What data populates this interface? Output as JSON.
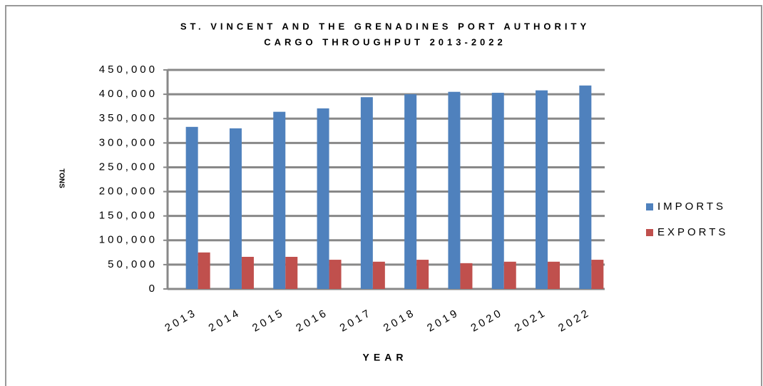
{
  "chart_data": {
    "type": "bar",
    "title": [
      "ST. VINCENT AND THE GRENADINES PORT AUTHORITY",
      "CARGO THROUGHPUT 2013-2022"
    ],
    "x_label": "YEAR",
    "y_label": "TONS",
    "categories": [
      "2013",
      "2014",
      "2015",
      "2016",
      "2017",
      "2018",
      "2019",
      "2020",
      "2021",
      "2022"
    ],
    "series": [
      {
        "name": "IMPORTS",
        "color": "#4f81bd",
        "values": [
          333000,
          330000,
          364000,
          371000,
          394000,
          400000,
          405000,
          403000,
          408000,
          418000
        ]
      },
      {
        "name": "EXPORTS",
        "color": "#c0504d",
        "values": [
          75000,
          66000,
          66000,
          60000,
          56000,
          60000,
          53000,
          56000,
          56000,
          60000
        ]
      }
    ],
    "ylim": [
      0,
      450000
    ],
    "yticks": [
      0,
      {
        "value": 50000,
        "label": "50,000"
      },
      {
        "value": 100000,
        "label": "100,000"
      },
      {
        "value": 150000,
        "label": "150,000"
      },
      {
        "value": 200000,
        "label": "200,000"
      },
      {
        "value": 250000,
        "label": "250,000"
      },
      {
        "value": 300000,
        "label": "300,000"
      },
      {
        "value": 350000,
        "label": "350,000"
      },
      {
        "value": 400000,
        "label": "400,000"
      },
      {
        "value": 450000,
        "label": "450,000"
      }
    ],
    "grid": true,
    "legend": "right"
  }
}
